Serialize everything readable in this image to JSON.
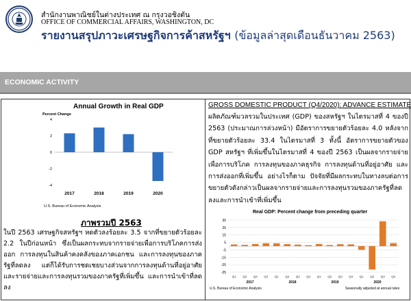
{
  "header": {
    "agency_th": "สำนักงานพาณิชย์ในต่างประเทศ ณ กรุงวอชิงตัน",
    "agency_en": "OFFICE OF COMMERCIAL AFFAIRS, WASHINGTON, DC",
    "title_main": "รายงานสรุปภาวะเศรษฐกิจการค้าสหรัฐฯ",
    "title_sub": "(ข้อมูลล่าสุดเดือนธันวาคม 2563)"
  },
  "section_band": "ECONOMIC ACTIVITY",
  "left": {
    "overview_title": "ภาพรวมปี 2563",
    "overview_body": "ในปี 2563 เศรษฐกิจสหรัฐฯ หดตัวลงร้อยละ 3.5 จากที่ขยายตัวร้อยละ 2.2 ในปีก่อนหน้า ซึ่งเป็นผลกระทบจากรายจ่ายเพื่อการบริโภคการส่งออก การลงทุนในสินค้าคงคลังของภาคเอกชน และการลงทุนของภาครัฐที่ลดลง แต่ก็ได้รับการชดเชยบางส่วนจากการลงทุนด้านที่อยู่อาศัยและรายจ่ายและการลงทุนรวมของภาครัฐที่เพิ่มขึ้น และการนำเข้าที่ลดลง"
  },
  "right": {
    "gdp_title": "GROSS DOMESTIC PRODUCT (Q4/2020): ADVANCE ESTIMATE",
    "gdp_body": "ผลิตภัณฑ์มวลรวมในประเทศ (GDP) ของสหรัฐฯ ในไตรมาสที่ 4 ของปี 2563 (ประมาณการล่วงหน้า) มีอัตราการขยายตัวร้อยละ 4.0 หลังจากที่ขยายตัวร้อยละ 33.4 ในไตรมาสที่ 3 ทั้งนี้ อัตราการขยายตัวของ GDP สหรัฐฯ ที่เพิ่มขึ้นในไตรมาสที่ 4 ของปี 2563 เป็นผลจากรายจ่ายเพื่อการบริโภค การลงทุนของภาคธุรกิจ การลงทุนด้านที่อยู่อาศัย และการส่งออกที่เพิ่มขึ้น อย่างไรก็ตาม ปัจจัยที่มีผลกระทบในทางลบต่อการขยายตัวดังกล่าวเป็นผลจากรายจ่ายและการลงทุนรวมของภาครัฐที่ลดลงและการนำเข้าที่เพิ่มขึ้น"
  },
  "chart_data": [
    {
      "type": "bar",
      "title": "Annual Growth in Real GDP",
      "ylabel": "Percent Change",
      "xlabel": "",
      "categories": [
        "2017",
        "2018",
        "2019",
        "2020"
      ],
      "values": [
        2.3,
        3.0,
        2.2,
        -3.5
      ],
      "ylim": [
        -4,
        4
      ],
      "yticks": [
        "4",
        "2",
        "0",
        "-2",
        "-4"
      ],
      "grid": false,
      "bar_color": "#2f6fc0",
      "source": "U.S. Bureau of Economic Analysis"
    },
    {
      "type": "bar",
      "title": "Real GDP:  Percent change from preceding quarter",
      "ylabel": "",
      "xlabel": "",
      "quarter_labels": [
        "Q1",
        "Q2",
        "Q3",
        "Q4",
        "Q1",
        "Q2",
        "Q3",
        "Q4",
        "Q1",
        "Q2",
        "Q3",
        "Q4",
        "Q1",
        "Q2",
        "Q3",
        "Q4"
      ],
      "years": [
        "2017",
        "2018",
        "2019",
        "2020"
      ],
      "values": [
        2.3,
        1.7,
        2.9,
        3.9,
        3.8,
        2.7,
        2.1,
        1.3,
        2.9,
        1.5,
        2.6,
        2.4,
        -5.0,
        -31.4,
        33.4,
        4.0
      ],
      "ylim": [
        -35,
        35
      ],
      "yticks": [
        "35",
        "25",
        "15",
        "5",
        "-5",
        "-15",
        "-25",
        "-35"
      ],
      "grid": true,
      "bar_color": "#e07b2a",
      "source": "U.S. Bureau of Economic Analysis",
      "note": "Seasonally adjusted at annual rates"
    }
  ]
}
